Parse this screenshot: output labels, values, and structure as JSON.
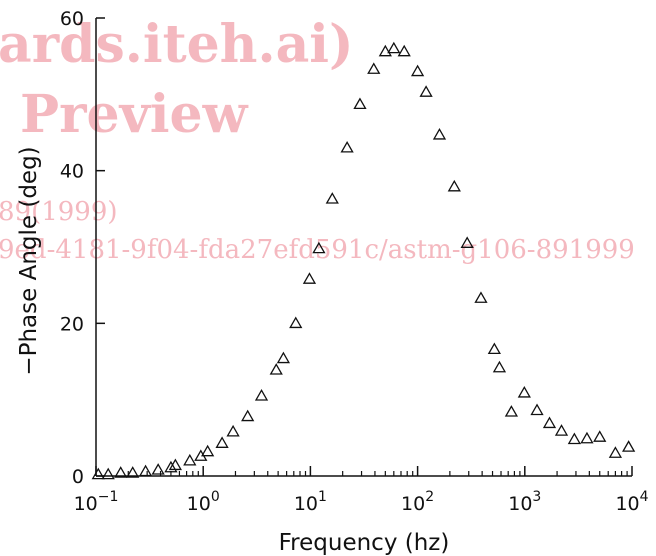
{
  "watermark": {
    "line1": "ards.iteh.ai)",
    "line2": "Preview",
    "line3": "89(1999)",
    "line4": "9ed-4181-9f04-fda27efd591c/astm-g106-891999"
  },
  "chart_data": {
    "type": "scatter",
    "title": "",
    "xlabel": "Frequency (hz)",
    "ylabel": "−Phase Angle (deg)",
    "xscale": "log",
    "xlim": [
      0.1,
      10000
    ],
    "ylim": [
      0,
      60
    ],
    "x_ticks": [
      {
        "value": 0.1,
        "base": "10",
        "exp": "−1"
      },
      {
        "value": 1,
        "base": "10",
        "exp": "0"
      },
      {
        "value": 10,
        "base": "10",
        "exp": "1"
      },
      {
        "value": 100,
        "base": "10",
        "exp": "2"
      },
      {
        "value": 1000,
        "base": "10",
        "exp": "3"
      },
      {
        "value": 10000,
        "base": "10",
        "exp": "4"
      }
    ],
    "y_ticks": [
      {
        "value": 0,
        "label": "0"
      },
      {
        "value": 20,
        "label": "20"
      },
      {
        "value": 40,
        "label": "40"
      },
      {
        "value": 60,
        "label": "60"
      }
    ],
    "marker": "open-triangle",
    "grid": false,
    "legend": "none",
    "x": [
      0.105,
      0.13,
      0.17,
      0.22,
      0.29,
      0.38,
      0.5,
      0.55,
      0.75,
      0.95,
      1.1,
      1.5,
      1.9,
      2.6,
      3.5,
      4.8,
      5.6,
      7.3,
      9.8,
      12,
      16,
      22,
      29,
      39,
      50,
      60,
      75,
      100,
      120,
      160,
      220,
      290,
      390,
      520,
      580,
      750,
      990,
      1300,
      1700,
      2200,
      2900,
      3800,
      5000,
      7000,
      9300
    ],
    "y": [
      0.2,
      0.2,
      0.4,
      0.4,
      0.6,
      0.8,
      1.1,
      1.4,
      2.0,
      2.6,
      3.2,
      4.3,
      5.8,
      7.8,
      10.5,
      13.9,
      15.4,
      20.0,
      25.8,
      29.8,
      36.3,
      43.0,
      48.7,
      53.3,
      55.6,
      56.0,
      55.6,
      53.0,
      50.3,
      44.7,
      37.9,
      30.5,
      23.3,
      16.6,
      14.2,
      8.4,
      10.9,
      8.6,
      6.9,
      5.9,
      4.8,
      4.9,
      5.1,
      3.0,
      3.8
    ]
  }
}
